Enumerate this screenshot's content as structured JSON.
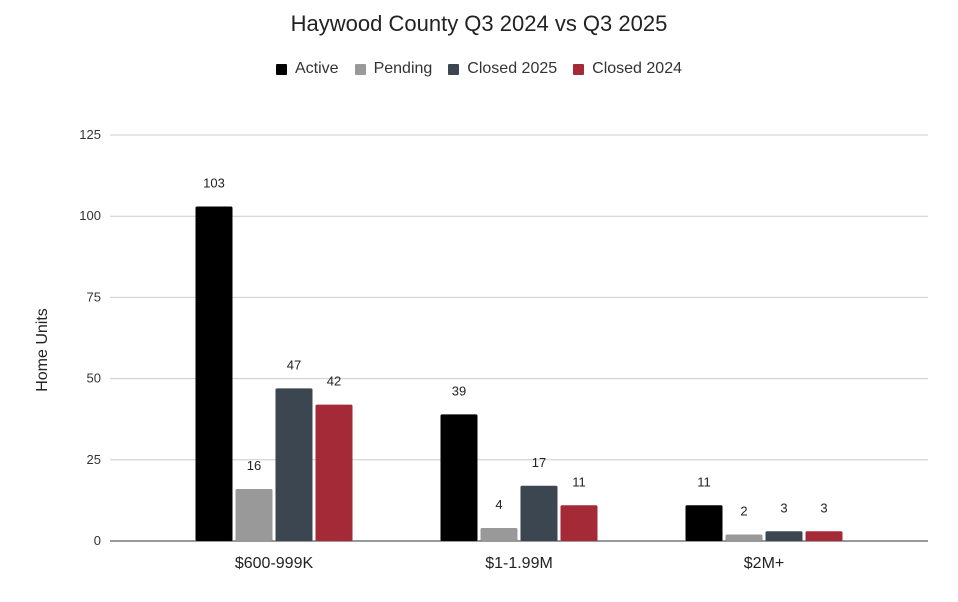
{
  "chart_data": {
    "type": "bar",
    "title": "Haywood County Q3 2024 vs Q3 2025",
    "xlabel": "",
    "ylabel": "Home Units",
    "ylim": [
      0,
      125
    ],
    "yticks": [
      0,
      25,
      50,
      75,
      100,
      125
    ],
    "grid": true,
    "legend_position": "top",
    "categories": [
      "$600-999K",
      "$1-1.99M",
      "$2M+"
    ],
    "series": [
      {
        "name": "Active",
        "color": "#000000",
        "values": [
          103,
          39,
          11
        ]
      },
      {
        "name": "Pending",
        "color": "#999999",
        "values": [
          16,
          4,
          2
        ]
      },
      {
        "name": "Closed 2025",
        "color": "#3c4650",
        "values": [
          47,
          17,
          3
        ]
      },
      {
        "name": "Closed 2024",
        "color": "#a52a38",
        "values": [
          42,
          11,
          3
        ]
      }
    ]
  }
}
